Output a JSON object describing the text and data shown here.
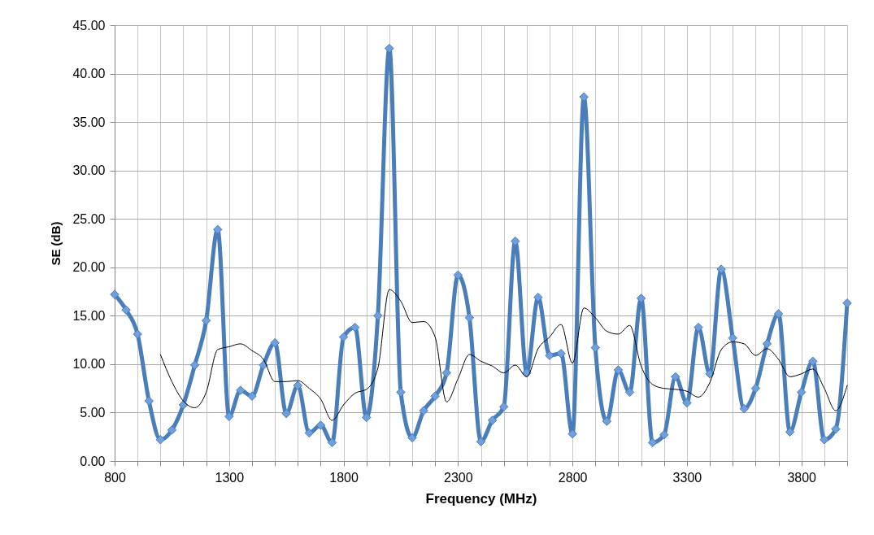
{
  "chart_data": {
    "type": "line",
    "xlabel": "Frequency (MHz)",
    "ylabel": "SE (dB)",
    "xlim": [
      800,
      4000
    ],
    "ylim": [
      0,
      45
    ],
    "xticks": [
      800,
      {
        "value": 900,
        "label": null
      },
      {
        "value": 1000,
        "label": null
      },
      {
        "value": 1100,
        "label": null
      },
      {
        "value": 1200,
        "label": null
      },
      1300,
      {
        "value": 1400,
        "label": null
      },
      {
        "value": 1500,
        "label": null
      },
      {
        "value": 1600,
        "label": null
      },
      {
        "value": 1700,
        "label": null
      },
      1800,
      {
        "value": 1900,
        "label": null
      },
      {
        "value": 2000,
        "label": null
      },
      {
        "value": 2100,
        "label": null
      },
      {
        "value": 2200,
        "label": null
      },
      2300,
      {
        "value": 2400,
        "label": null
      },
      {
        "value": 2500,
        "label": null
      },
      {
        "value": 2600,
        "label": null
      },
      {
        "value": 2700,
        "label": null
      },
      2800,
      {
        "value": 2900,
        "label": null
      },
      {
        "value": 3000,
        "label": null
      },
      {
        "value": 3100,
        "label": null
      },
      {
        "value": 3200,
        "label": null
      },
      3300,
      {
        "value": 3400,
        "label": null
      },
      {
        "value": 3500,
        "label": null
      },
      {
        "value": 3600,
        "label": null
      },
      {
        "value": 3700,
        "label": null
      },
      3800,
      {
        "value": 3900,
        "label": null
      },
      {
        "value": 4000,
        "label": null
      }
    ],
    "yticks": [
      {
        "value": 0,
        "label": "0.00"
      },
      {
        "value": 5,
        "label": "5.00"
      },
      {
        "value": 10,
        "label": "10.00"
      },
      {
        "value": 15,
        "label": "15.00"
      },
      {
        "value": 20,
        "label": "20.00"
      },
      {
        "value": 25,
        "label": "25.00"
      },
      {
        "value": 30,
        "label": "30.00"
      },
      {
        "value": 35,
        "label": "35.00"
      },
      {
        "value": 40,
        "label": "40.00"
      },
      {
        "value": 45,
        "label": "45.00"
      }
    ],
    "grid": true,
    "series": [
      {
        "color": "#4a7ebb",
        "marker": "diamond",
        "x": [
          800,
          850,
          900,
          950,
          1000,
          1050,
          1100,
          1150,
          1200,
          1250,
          1300,
          1350,
          1400,
          1450,
          1500,
          1550,
          1600,
          1650,
          1700,
          1750,
          1800,
          1850,
          1900,
          1950,
          2000,
          2050,
          2100,
          2150,
          2200,
          2250,
          2300,
          2350,
          2400,
          2450,
          2500,
          2550,
          2600,
          2650,
          2700,
          2750,
          2800,
          2850,
          2900,
          2950,
          3000,
          3050,
          3100,
          3150,
          3200,
          3250,
          3300,
          3350,
          3400,
          3450,
          3500,
          3550,
          3600,
          3650,
          3700,
          3750,
          3800,
          3850,
          3900,
          3950,
          4000
        ],
        "values": [
          17.2,
          15.6,
          13.1,
          6.2,
          2.2,
          3.2,
          5.8,
          9.9,
          14.5,
          23.9,
          4.6,
          7.3,
          6.7,
          9.9,
          12.2,
          4.9,
          7.8,
          2.9,
          3.7,
          1.9,
          12.8,
          13.8,
          4.5,
          15.0,
          42.6,
          7.1,
          2.4,
          5.2,
          6.7,
          9.1,
          19.2,
          14.8,
          2.0,
          4.2,
          5.6,
          22.7,
          9.1,
          16.9,
          10.9,
          11.1,
          2.8,
          37.6,
          11.7,
          4.1,
          9.4,
          7.1,
          16.8,
          1.9,
          2.7,
          8.7,
          6.0,
          13.8,
          9.0,
          19.8,
          12.7,
          5.4,
          7.5,
          12.1,
          15.2,
          3.0,
          7.1,
          10.3,
          2.2,
          3.3,
          16.3
        ]
      },
      {
        "color": "#000000",
        "marker": "none",
        "x": [
          1000,
          1050,
          1100,
          1150,
          1200,
          1250,
          1300,
          1350,
          1400,
          1450,
          1500,
          1550,
          1600,
          1650,
          1700,
          1750,
          1800,
          1850,
          1900,
          1950,
          2000,
          2050,
          2100,
          2150,
          2200,
          2250,
          2300,
          2350,
          2400,
          2450,
          2500,
          2550,
          2600,
          2650,
          2700,
          2750,
          2800,
          2850,
          2900,
          2950,
          3000,
          3050,
          3100,
          3150,
          3200,
          3250,
          3300,
          3350,
          3400,
          3450,
          3500,
          3550,
          3600,
          3650,
          3700,
          3750,
          3800,
          3850,
          3900,
          3950,
          4000
        ],
        "values": [
          11.0,
          8.2,
          6.2,
          5.5,
          7.1,
          11.5,
          11.8,
          12.1,
          11.4,
          10.5,
          8.2,
          8.2,
          8.3,
          7.5,
          6.4,
          4.2,
          5.8,
          7.0,
          7.4,
          9.6,
          17.7,
          16.5,
          14.3,
          14.4,
          12.8,
          6.1,
          8.5,
          11.0,
          10.3,
          9.8,
          9.1,
          9.9,
          8.7,
          11.6,
          12.8,
          14.1,
          10.1,
          15.8,
          14.8,
          13.4,
          13.1,
          14.0,
          9.8,
          7.9,
          7.5,
          7.4,
          7.2,
          6.6,
          8.1,
          11.5,
          12.3,
          12.1,
          10.9,
          11.6,
          10.5,
          8.7,
          9.0,
          9.5,
          7.5,
          5.2,
          7.8
        ]
      }
    ]
  }
}
